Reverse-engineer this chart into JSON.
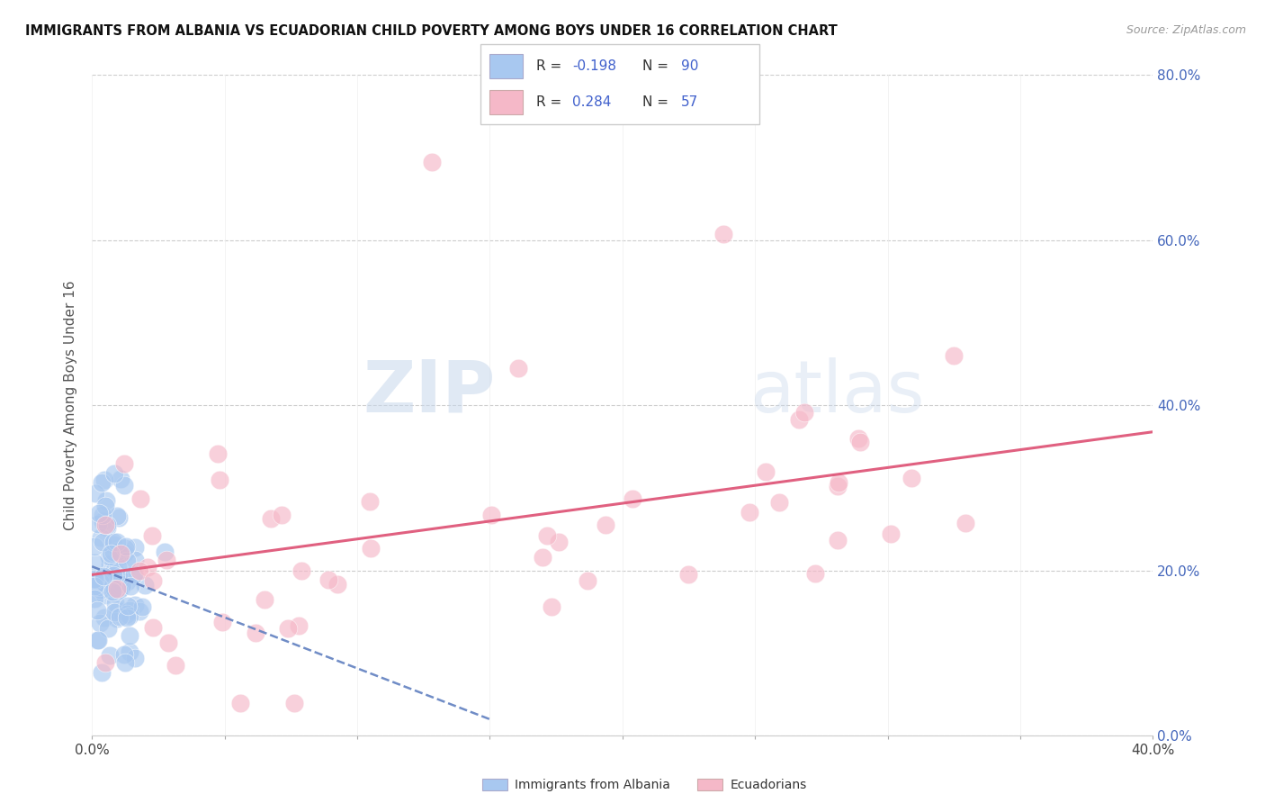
{
  "title": "IMMIGRANTS FROM ALBANIA VS ECUADORIAN CHILD POVERTY AMONG BOYS UNDER 16 CORRELATION CHART",
  "source": "Source: ZipAtlas.com",
  "ylabel": "Child Poverty Among Boys Under 16",
  "xlim": [
    0.0,
    0.4
  ],
  "ylim": [
    0.0,
    0.8
  ],
  "xticks": [
    0.0,
    0.05,
    0.1,
    0.15,
    0.2,
    0.25,
    0.3,
    0.35,
    0.4
  ],
  "yticks": [
    0.0,
    0.2,
    0.4,
    0.6,
    0.8
  ],
  "color_blue": "#a8c8f0",
  "color_pink": "#f5b8c8",
  "color_blue_line": "#6080c0",
  "color_pink_line": "#e06080",
  "color_blue_text": "#4060cc",
  "color_axis_right": "#4466bb",
  "watermark_zip": "ZIP",
  "watermark_atlas": "atlas",
  "legend_r1_label": "R = ",
  "legend_r1_val": "-0.198",
  "legend_n1_label": "N = ",
  "legend_n1_val": "90",
  "legend_r2_label": "R =  ",
  "legend_r2_val": "0.284",
  "legend_n2_label": "N = ",
  "legend_n2_val": "57",
  "bottom_label1": "Immigrants from Albania",
  "bottom_label2": "Ecuadorians",
  "alb_trend_x0": 0.0,
  "alb_trend_y0": 0.205,
  "alb_trend_x1": 0.15,
  "alb_trend_y1": 0.02,
  "ecu_trend_x0": 0.0,
  "ecu_trend_y0": 0.195,
  "ecu_trend_x1": 0.4,
  "ecu_trend_y1": 0.368
}
